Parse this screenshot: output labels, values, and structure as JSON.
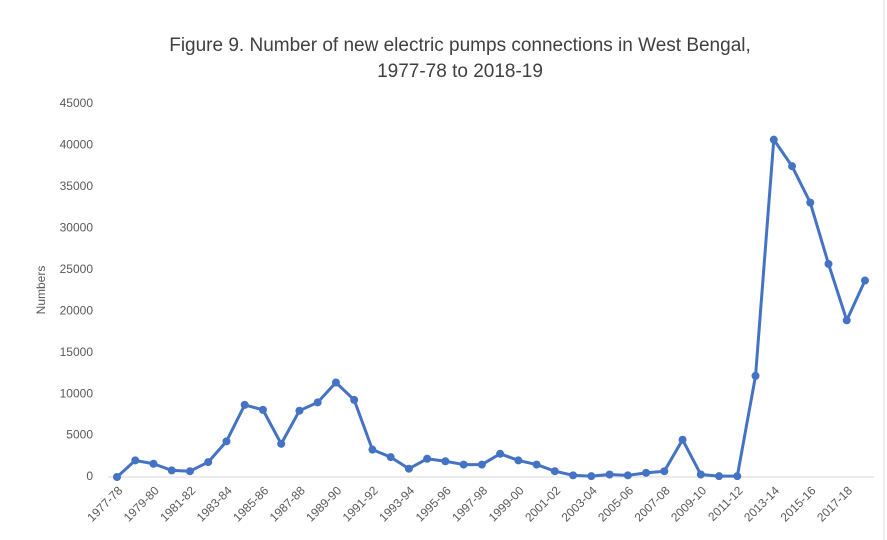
{
  "chart_data": {
    "type": "line",
    "title": [
      "Figure 9. Number of new electric pumps connections in West Bengal,",
      "1977-78 to 2018-19"
    ],
    "y_label": "Numbers",
    "categories": [
      "1977-78",
      null,
      "1979-80",
      null,
      "1981-82",
      null,
      "1983-84",
      null,
      "1985-86",
      null,
      "1987-88",
      null,
      "1989-90",
      null,
      "1991-92",
      null,
      "1993-94",
      null,
      "1995-96",
      null,
      "1997-98",
      null,
      "1999-00",
      null,
      "2001-02",
      null,
      "2003-04",
      null,
      "2005-06",
      null,
      "2007-08",
      null,
      "2009-10",
      null,
      "2011-12",
      null,
      "2013-14",
      null,
      "2015-16",
      null,
      "2017-18",
      null
    ],
    "series": [
      {
        "name": "Numbers",
        "color": "#4472c4",
        "values": [
          0,
          2000,
          1600,
          800,
          700,
          1800,
          4300,
          8700,
          8100,
          4000,
          8000,
          9000,
          11400,
          9300,
          3300,
          2400,
          1000,
          2200,
          1900,
          1500,
          1500,
          2800,
          2000,
          1500,
          700,
          200,
          100,
          300,
          200,
          500,
          700,
          4500,
          300,
          100,
          100,
          12200,
          40700,
          37500,
          33100,
          25700,
          18900,
          23700
        ]
      }
    ],
    "ylim": [
      0,
      45000
    ],
    "yticks": [
      0,
      5000,
      10000,
      15000,
      20000,
      25000,
      30000,
      35000,
      40000,
      45000
    ],
    "grid": false
  }
}
